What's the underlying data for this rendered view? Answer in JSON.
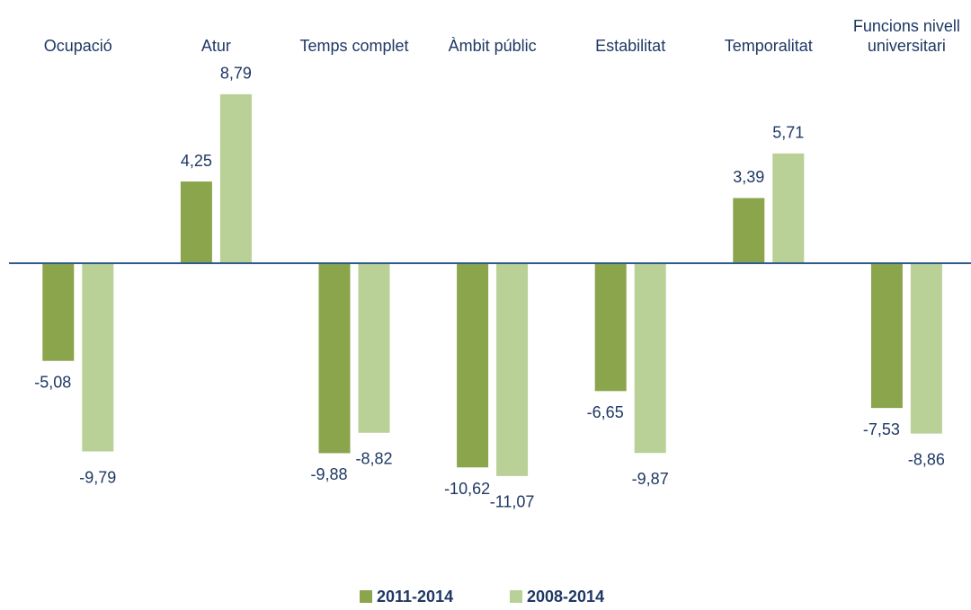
{
  "chart_data": {
    "type": "bar",
    "categories": [
      "Ocupació",
      "Atur",
      "Temps complet",
      "Àmbit públic",
      "Estabilitat",
      "Temporalitat",
      "Funcions nivell universitari"
    ],
    "series": [
      {
        "name": "2011-2014",
        "color": "#8aa54c",
        "values": [
          -5.08,
          4.25,
          -9.88,
          -10.62,
          -6.65,
          3.39,
          -7.53
        ],
        "value_labels": [
          "-5,08",
          "4,25",
          "-9,88",
          "-10,62",
          "-6,65",
          "3,39",
          "-7,53"
        ]
      },
      {
        "name": "2008-2014",
        "color": "#b9d096",
        "values": [
          -9.79,
          8.79,
          -8.82,
          -11.07,
          -9.87,
          5.71,
          -8.86
        ],
        "value_labels": [
          "-9,79",
          "8,79",
          "-8,82",
          "-11,07",
          "-9,87",
          "5,71",
          "-8,86"
        ]
      }
    ]
  }
}
